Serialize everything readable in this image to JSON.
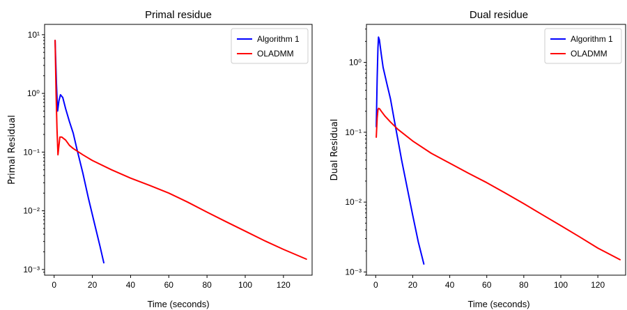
{
  "chart_data": [
    {
      "type": "line",
      "title": "Primal residue",
      "xlabel": "Time (seconds)",
      "ylabel": "Primal Residual",
      "yscale": "log",
      "xlim": [
        -5,
        135
      ],
      "ylim": [
        0.0008,
        15
      ],
      "xticks": [
        0,
        20,
        40,
        60,
        80,
        100,
        120
      ],
      "yticks": [
        {
          "value": 0.001,
          "label": "10⁻³"
        },
        {
          "value": 0.01,
          "label": "10⁻²"
        },
        {
          "value": 0.1,
          "label": "10⁻¹"
        },
        {
          "value": 1,
          "label": "10⁰"
        },
        {
          "value": 10,
          "label": "10¹"
        }
      ],
      "legend_position": "top-right",
      "grid": false,
      "series": [
        {
          "name": "Algorithm 1",
          "color": "#0000ff",
          "x": [
            0.5,
            1.2,
            1.8,
            2.5,
            3.3,
            4.5,
            6,
            8,
            10,
            12,
            15,
            18,
            21,
            24,
            26
          ],
          "y": [
            8,
            1.5,
            0.5,
            0.75,
            0.95,
            0.85,
            0.55,
            0.33,
            0.21,
            0.11,
            0.044,
            0.016,
            0.0063,
            0.0025,
            0.0013
          ]
        },
        {
          "name": "OLADMM",
          "color": "#ff0000",
          "x": [
            0.5,
            1,
            1.5,
            2,
            2.4,
            3,
            4,
            6,
            8,
            10,
            15,
            20,
            30,
            40,
            50,
            60,
            70,
            80,
            90,
            100,
            110,
            120,
            132
          ],
          "y": [
            8,
            1.0,
            0.25,
            0.09,
            0.12,
            0.18,
            0.18,
            0.16,
            0.13,
            0.115,
            0.09,
            0.072,
            0.05,
            0.036,
            0.027,
            0.02,
            0.014,
            0.0095,
            0.0065,
            0.0045,
            0.0031,
            0.0022,
            0.0015
          ]
        }
      ]
    },
    {
      "type": "line",
      "title": "Dual residue",
      "xlabel": "Time (seconds)",
      "ylabel": "Dual Residual",
      "yscale": "log",
      "xlim": [
        -5,
        135
      ],
      "ylim": [
        0.0009,
        3.5
      ],
      "xticks": [
        0,
        20,
        40,
        60,
        80,
        100,
        120
      ],
      "yticks": [
        {
          "value": 0.001,
          "label": "10⁻³"
        },
        {
          "value": 0.01,
          "label": "10⁻²"
        },
        {
          "value": 0.1,
          "label": "10⁻¹"
        },
        {
          "value": 1,
          "label": "10⁰"
        }
      ],
      "legend_position": "top-right",
      "grid": false,
      "series": [
        {
          "name": "Algorithm 1",
          "color": "#0000ff",
          "x": [
            0.3,
            0.8,
            1.2,
            1.5,
            2,
            3,
            4,
            6,
            8,
            10,
            12,
            14,
            17,
            20,
            23,
            26
          ],
          "y": [
            0.12,
            0.6,
            1.6,
            2.3,
            2.1,
            1.3,
            0.85,
            0.5,
            0.3,
            0.15,
            0.078,
            0.04,
            0.016,
            0.0065,
            0.0027,
            0.0013
          ]
        },
        {
          "name": "OLADMM",
          "color": "#ff0000",
          "x": [
            0.3,
            0.8,
            1.2,
            1.6,
            2.2,
            3,
            5,
            8,
            12,
            20,
            30,
            40,
            50,
            60,
            70,
            80,
            90,
            100,
            110,
            120,
            132
          ],
          "y": [
            0.085,
            0.16,
            0.21,
            0.22,
            0.215,
            0.2,
            0.17,
            0.14,
            0.11,
            0.075,
            0.05,
            0.036,
            0.026,
            0.019,
            0.0135,
            0.0095,
            0.0066,
            0.0046,
            0.0032,
            0.0022,
            0.0015
          ]
        }
      ]
    }
  ]
}
